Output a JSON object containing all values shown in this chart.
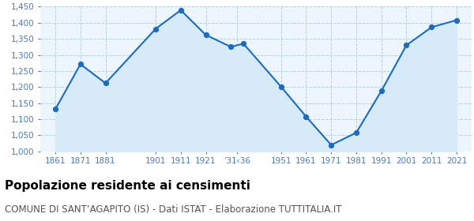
{
  "years": [
    1861,
    1871,
    1881,
    1901,
    1911,
    1921,
    1931,
    1936,
    1951,
    1961,
    1971,
    1981,
    1991,
    2001,
    2011,
    2021
  ],
  "population": [
    1131,
    1271,
    1212,
    1381,
    1439,
    1362,
    1325,
    1335,
    1201,
    1108,
    1020,
    1058,
    1188,
    1330,
    1386,
    1408
  ],
  "xtick_years": [
    1861,
    1871,
    1881,
    1901,
    1911,
    1921,
    1931,
    1951,
    1961,
    1971,
    1981,
    1991,
    2001,
    2011,
    2021
  ],
  "xtick_labels": [
    "1861",
    "1871",
    "1881",
    "1901",
    "1911",
    "1921",
    "’31‹36",
    "1951",
    "1961",
    "1971",
    "1981",
    "1991",
    "2001",
    "2011",
    "2021"
  ],
  "line_color": "#1b6bbf",
  "fill_color": "#d6eaf8",
  "marker_color": "#1b6bbf",
  "bg_color": "#edf5fc",
  "grid_color": "#b8cfe0",
  "title": "Popolazione residente ai censimenti",
  "subtitle": "COMUNE DI SANT’AGAPITO (IS) - Dati ISTAT - Elaborazione TUTTITALIA.IT",
  "ylim": [
    1000,
    1450
  ],
  "yticks": [
    1000,
    1050,
    1100,
    1150,
    1200,
    1250,
    1300,
    1350,
    1400,
    1450
  ],
  "title_fontsize": 11,
  "subtitle_fontsize": 8.5,
  "tick_color": "#4a7ab5",
  "tick_fontsize": 7.5
}
